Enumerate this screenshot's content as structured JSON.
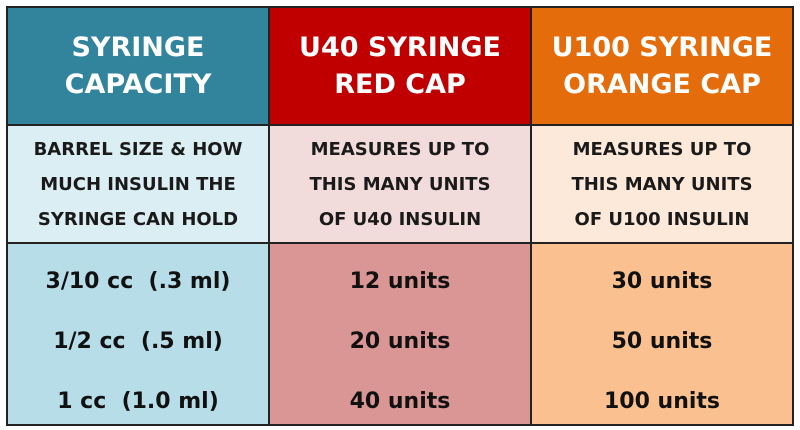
{
  "table": {
    "header": [
      [
        "SYRINGE",
        "CAPACITY"
      ],
      [
        "U40 SYRINGE",
        "RED CAP"
      ],
      [
        "U100 SYRINGE",
        "ORANGE CAP"
      ]
    ],
    "description": [
      [
        "BARREL SIZE & HOW",
        "MUCH INSULIN THE",
        "SYRINGE CAN HOLD"
      ],
      [
        "MEASURES UP TO",
        "THIS MANY UNITS",
        "OF U40 INSULIN"
      ],
      [
        "MEASURES UP TO",
        "THIS MANY UNITS",
        "OF U100 INSULIN"
      ]
    ],
    "rows": [
      [
        "3/10 cc  (.3 ml)",
        "12 units",
        "30 units"
      ],
      [
        "1/2 cc  (.5 ml)",
        "20 units",
        "50 units"
      ],
      [
        "1 cc  (1.0 ml)",
        "40 units",
        "100 units"
      ]
    ]
  }
}
